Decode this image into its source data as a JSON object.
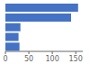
{
  "chart_data": {
    "type": "bar",
    "orientation": "horizontal",
    "categories": [
      null,
      null,
      null,
      null,
      null
    ],
    "values": [
      155,
      140,
      32,
      28,
      30
    ],
    "color": "#4472c4",
    "xlim": [
      0,
      165
    ],
    "xticks": [
      0,
      50,
      100,
      150
    ],
    "grid": false,
    "tick_labels": "x"
  }
}
